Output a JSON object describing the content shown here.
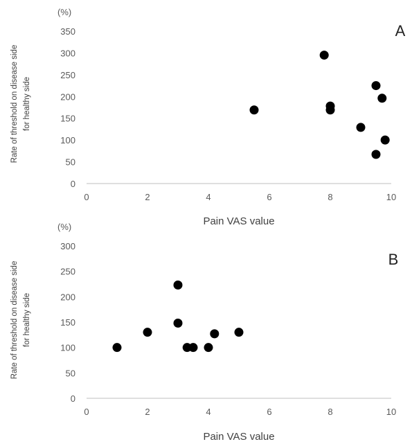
{
  "chart_data": [
    {
      "type": "scatter",
      "panel_label": "A",
      "unit_label": "(%)",
      "xlabel": "Pain VAS value",
      "ylabel_line1": "Rate of threshold  on disease side",
      "ylabel_line2": "for healthy side",
      "xlim": [
        0,
        10
      ],
      "ylim": [
        0,
        350
      ],
      "xticks": [
        0,
        2,
        4,
        6,
        8,
        10
      ],
      "yticks": [
        0,
        50,
        100,
        150,
        200,
        250,
        300,
        350
      ],
      "grid": false,
      "points": [
        {
          "x": 5.5,
          "y": 169
        },
        {
          "x": 7.8,
          "y": 295
        },
        {
          "x": 8.0,
          "y": 178
        },
        {
          "x": 8.0,
          "y": 169
        },
        {
          "x": 9.0,
          "y": 129
        },
        {
          "x": 9.5,
          "y": 225
        },
        {
          "x": 9.5,
          "y": 67
        },
        {
          "x": 9.7,
          "y": 196
        },
        {
          "x": 9.8,
          "y": 100
        }
      ]
    },
    {
      "type": "scatter",
      "panel_label": "B",
      "unit_label": "(%)",
      "xlabel": "Pain VAS value",
      "ylabel_line1": "Rate of threshold  on disease side",
      "ylabel_line2": "for healthy side",
      "xlim": [
        0,
        10
      ],
      "ylim": [
        0,
        300
      ],
      "xticks": [
        0,
        2,
        4,
        6,
        8,
        10
      ],
      "yticks": [
        0,
        50,
        100,
        150,
        200,
        250,
        300
      ],
      "grid": false,
      "points": [
        {
          "x": 1.0,
          "y": 100
        },
        {
          "x": 2.0,
          "y": 130
        },
        {
          "x": 3.0,
          "y": 223
        },
        {
          "x": 3.0,
          "y": 148
        },
        {
          "x": 3.3,
          "y": 100
        },
        {
          "x": 3.5,
          "y": 100
        },
        {
          "x": 4.0,
          "y": 100
        },
        {
          "x": 4.2,
          "y": 127
        },
        {
          "x": 5.0,
          "y": 130
        }
      ]
    }
  ]
}
